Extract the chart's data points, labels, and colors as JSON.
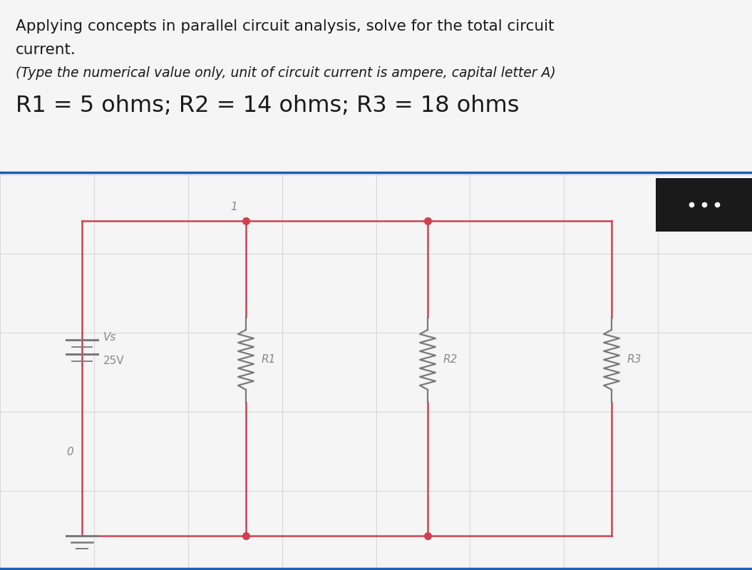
{
  "title_line1": "Applying concepts in parallel circuit analysis, solve for the total circuit",
  "title_line2": "current.",
  "subtitle": "(Type the numerical value only, unit of circuit current is ampere, capital letter A)",
  "resistor_line": "R1 = 5 ohms; R2 = 14 ohms; R3 = 18 ohms",
  "voltage": "25V",
  "vs_label": "Vs",
  "node_label": "1",
  "ground_label": "0",
  "r1_label": "R1",
  "r2_label": "R2",
  "r3_label": "R3",
  "circuit_color": "#d04050",
  "grid_color": "#d8d8d8",
  "text_color": "#888888",
  "bg_color": "#f5f5f5",
  "title_color": "#1a1a1a",
  "blue_line_color": "#1a5eb8",
  "black_box_color": "#1a1a1a",
  "dots_color": "#ffffff",
  "title_fontsize": 15.5,
  "subtitle_fontsize": 13.5,
  "resistor_fontsize": 23,
  "label_fontsize": 11
}
